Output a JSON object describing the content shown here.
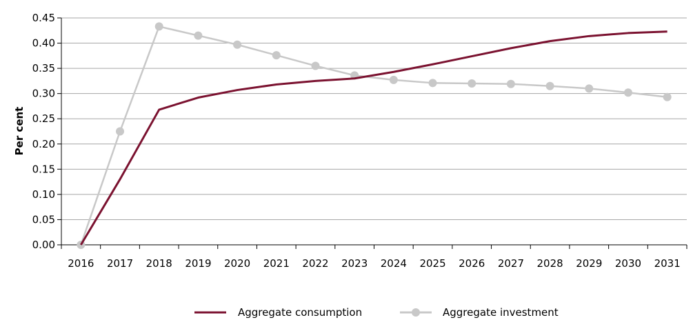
{
  "chart_data": {
    "type": "line",
    "title": "",
    "xlabel": "",
    "ylabel": "Per cent",
    "x": [
      "2016",
      "2017",
      "2018",
      "2019",
      "2020",
      "2021",
      "2022",
      "2023",
      "2024",
      "2025",
      "2026",
      "2027",
      "2028",
      "2029",
      "2030",
      "2031"
    ],
    "ylim": [
      0,
      0.45
    ],
    "yticks": [
      "0.00",
      "0.05",
      "0.10",
      "0.15",
      "0.20",
      "0.25",
      "0.30",
      "0.35",
      "0.40",
      "0.45"
    ],
    "grid": "horizontal",
    "legend_position": "bottom",
    "series": [
      {
        "name": "Aggregate consumption",
        "color": "#7b1230",
        "marker": "none",
        "values": [
          0.0,
          0.13,
          0.268,
          0.292,
          0.307,
          0.318,
          0.325,
          0.33,
          0.343,
          0.358,
          0.374,
          0.39,
          0.404,
          0.414,
          0.42,
          0.423
        ]
      },
      {
        "name": "Aggregate investment",
        "color": "#c8c8c8",
        "marker": "circle",
        "values": [
          0.0,
          0.225,
          0.433,
          0.415,
          0.397,
          0.376,
          0.355,
          0.336,
          0.327,
          0.321,
          0.32,
          0.319,
          0.315,
          0.31,
          0.302,
          0.293
        ]
      }
    ]
  }
}
